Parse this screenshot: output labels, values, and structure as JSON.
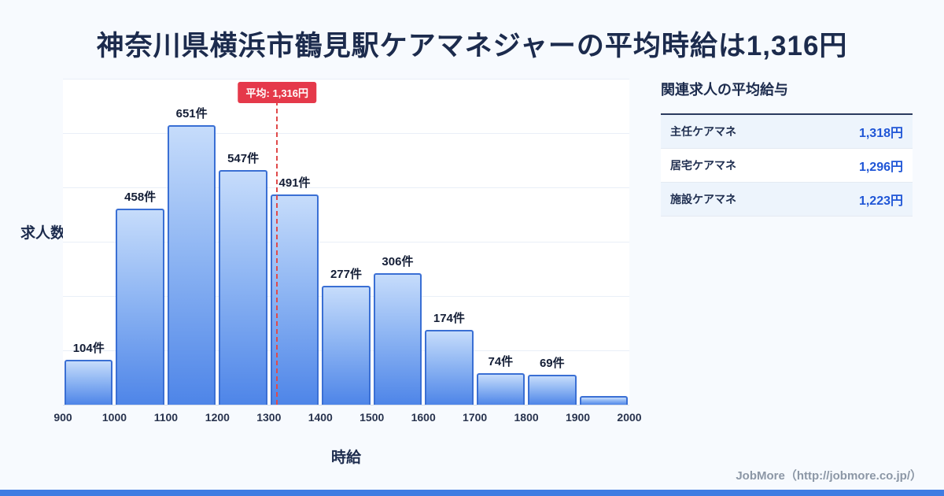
{
  "title": "神奈川県横浜市鶴見駅ケアマネジャーの平均時給は1,316円",
  "chart_data": {
    "type": "bar",
    "title": "",
    "xlabel": "時給",
    "ylabel": "求人数",
    "x_ticks": [
      900,
      1000,
      1100,
      1200,
      1300,
      1400,
      1500,
      1600,
      1700,
      1800,
      1900,
      2000
    ],
    "values": [
      104,
      458,
      651,
      547,
      491,
      277,
      306,
      174,
      74,
      69,
      20
    ],
    "bar_labels": [
      "104件",
      "458件",
      "651件",
      "547件",
      "491件",
      "277件",
      "306件",
      "174件",
      "74件",
      "69件",
      ""
    ],
    "average": {
      "value": 1316,
      "label": "平均: 1,316円"
    },
    "ylim": [
      0,
      760
    ],
    "grid": "horizontal",
    "bar_color_top": "#c6dcfb",
    "bar_color_bottom": "#4e85e8",
    "bar_border_color": "#3a6fd4",
    "average_line_color": "#e04a4a"
  },
  "side_panel": {
    "title": "関連求人の平均給与",
    "rows": [
      {
        "label": "主任ケアマネ",
        "value": "1,318円"
      },
      {
        "label": "居宅ケアマネ",
        "value": "1,296円"
      },
      {
        "label": "施設ケアマネ",
        "value": "1,223円"
      }
    ]
  },
  "footer": {
    "credit": "JobMore（http://jobmore.co.jp/）",
    "accent_color": "#3f7ce2"
  }
}
